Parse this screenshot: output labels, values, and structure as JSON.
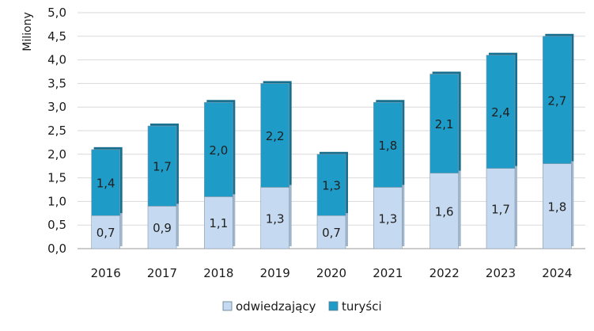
{
  "chart_data": {
    "type": "bar",
    "stacked": true,
    "categories": [
      "2016",
      "2017",
      "2018",
      "2019",
      "2020",
      "2021",
      "2022",
      "2023",
      "2024"
    ],
    "series": [
      {
        "name": "odwiedzający",
        "values": [
          0.7,
          0.9,
          1.1,
          1.3,
          0.7,
          1.3,
          1.6,
          1.7,
          1.8
        ],
        "labels": [
          "0,7",
          "0,9",
          "1,1",
          "1,3",
          "0,7",
          "1,3",
          "1,6",
          "1,7",
          "1,8"
        ],
        "color": "#c5daf1"
      },
      {
        "name": "turyści",
        "values": [
          1.4,
          1.7,
          2.0,
          2.2,
          1.3,
          1.8,
          2.1,
          2.4,
          2.7
        ],
        "labels": [
          "1,4",
          "1,7",
          "2,0",
          "2,2",
          "1,3",
          "1,8",
          "2,1",
          "2,4",
          "2,7"
        ],
        "color": "#1f9bc7"
      }
    ],
    "ylabel": "Miliony",
    "xlabel": "",
    "ylim": [
      0,
      5
    ],
    "yticks": [
      0,
      0.5,
      1,
      1.5,
      2,
      2.5,
      3,
      3.5,
      4,
      4.5,
      5
    ],
    "ytick_labels": [
      "0,0",
      "0,5",
      "1,0",
      "1,5",
      "2,0",
      "2,5",
      "3,0",
      "3,5",
      "4,0",
      "4,5",
      "5,0"
    ],
    "grid": true,
    "legend": "bottom"
  }
}
